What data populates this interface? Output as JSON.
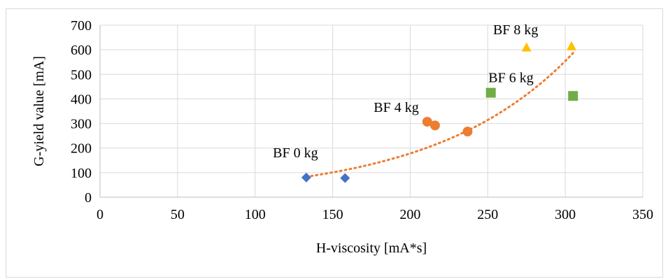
{
  "chart_data": {
    "type": "scatter",
    "xlabel": "H-viscosity [mA*s]",
    "ylabel": "G-yield value  [mA]",
    "xlim": [
      0,
      350
    ],
    "ylim": [
      0,
      700
    ],
    "x_ticks": [
      0,
      50,
      100,
      150,
      200,
      250,
      300,
      350
    ],
    "y_ticks": [
      0,
      100,
      200,
      300,
      400,
      500,
      600,
      700
    ],
    "grid": true,
    "legend": "none",
    "series": [
      {
        "marker": "diamond",
        "color": "#4472c4",
        "points": [
          [
            133,
            80
          ],
          [
            158,
            78
          ]
        ]
      },
      {
        "marker": "circle",
        "color": "#ed7d31",
        "points": [
          [
            211,
            307
          ],
          [
            216,
            292
          ],
          [
            237,
            267
          ]
        ]
      },
      {
        "marker": "square",
        "color": "#70ad47",
        "points": [
          [
            252,
            425
          ],
          [
            305,
            412
          ]
        ]
      },
      {
        "marker": "triangle",
        "color": "#ffc000",
        "points": [
          [
            275,
            610
          ],
          [
            304,
            615
          ]
        ]
      }
    ],
    "annotations": [
      {
        "text": "BF 0 kg",
        "x": 126,
        "y": 182
      },
      {
        "text": "BF 4 kg",
        "x": 191,
        "y": 367
      },
      {
        "text": "BF 6 kg",
        "x": 265,
        "y": 488
      },
      {
        "text": "BF 8 kg",
        "x": 268,
        "y": 683
      }
    ],
    "trendline": {
      "type": "exponential",
      "style": "dotted",
      "color": "#ed7d31",
      "x_range": [
        133,
        305
      ],
      "a": 18.4,
      "b": 0.01135
    }
  }
}
